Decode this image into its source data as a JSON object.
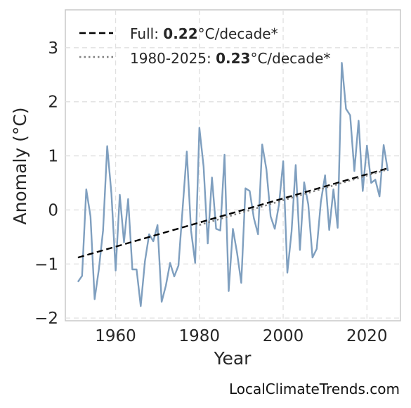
{
  "chart_data": {
    "type": "line",
    "xlabel": "Year",
    "ylabel": "Anomaly (°C)",
    "xlim": [
      1948,
      2028
    ],
    "ylim": [
      -2.05,
      3.7
    ],
    "xticks": [
      1960,
      1980,
      2000,
      2020
    ],
    "yticks": [
      -2,
      -1,
      0,
      1,
      2,
      3
    ],
    "ytick_labels": [
      "−2",
      "−1",
      "0",
      "1",
      "2",
      "3"
    ],
    "grid": true,
    "legend_position": "top-left",
    "series": [
      {
        "kind": "anomaly",
        "color": "#7f9fbf",
        "x": [
          1951,
          1952,
          1953,
          1954,
          1955,
          1956,
          1957,
          1958,
          1959,
          1960,
          1961,
          1962,
          1963,
          1964,
          1965,
          1966,
          1967,
          1968,
          1969,
          1970,
          1971,
          1972,
          1973,
          1974,
          1975,
          1976,
          1977,
          1978,
          1979,
          1980,
          1981,
          1982,
          1983,
          1984,
          1985,
          1986,
          1987,
          1988,
          1989,
          1990,
          1991,
          1992,
          1993,
          1994,
          1995,
          1996,
          1997,
          1998,
          1999,
          2000,
          2001,
          2002,
          2003,
          2004,
          2005,
          2006,
          2007,
          2008,
          2009,
          2010,
          2011,
          2012,
          2013,
          2014,
          2015,
          2016,
          2017,
          2018,
          2019,
          2020,
          2021,
          2022,
          2023,
          2024,
          2025
        ],
        "y": [
          -1.33,
          -1.22,
          0.38,
          -0.12,
          -1.65,
          -1.1,
          -0.38,
          1.18,
          0.3,
          -1.12,
          0.28,
          -0.6,
          0.2,
          -1.1,
          -1.1,
          -1.78,
          -0.95,
          -0.45,
          -0.58,
          -0.28,
          -1.7,
          -1.4,
          -0.98,
          -1.23,
          -1.03,
          0.02,
          1.08,
          -0.38,
          -0.98,
          1.52,
          0.8,
          -0.62,
          0.6,
          -0.35,
          -0.38,
          1.02,
          -1.5,
          -0.35,
          -0.8,
          -1.35,
          0.4,
          0.35,
          -0.15,
          -0.45,
          1.21,
          0.75,
          -0.12,
          -0.35,
          0.1,
          0.9,
          -1.16,
          -0.4,
          0.83,
          -0.74,
          0.51,
          0.1,
          -0.88,
          -0.72,
          0.15,
          0.64,
          -0.37,
          0.38,
          -0.33,
          2.72,
          1.87,
          1.75,
          0.72,
          1.65,
          0.35,
          1.19,
          0.5,
          0.56,
          0.25,
          1.2,
          0.72
        ]
      },
      {
        "name": "Full",
        "kind": "trend",
        "style": "dashed",
        "color": "#000000",
        "x": [
          1951,
          2025
        ],
        "y": [
          -0.88,
          0.77
        ]
      },
      {
        "name": "1980-2025",
        "kind": "trend",
        "style": "dotted",
        "color": "#808080",
        "x": [
          1980,
          2025
        ],
        "y": [
          -0.28,
          0.75
        ]
      }
    ],
    "legend": [
      {
        "label": "Full: ",
        "value": "0.22",
        "unit": "°C/decade*",
        "style": "dashed",
        "color": "#000000"
      },
      {
        "label": "1980-2025: ",
        "value": "0.23",
        "unit": "°C/decade*",
        "style": "dotted",
        "color": "#808080"
      }
    ]
  },
  "watermark": "LocalClimateTrends.com"
}
